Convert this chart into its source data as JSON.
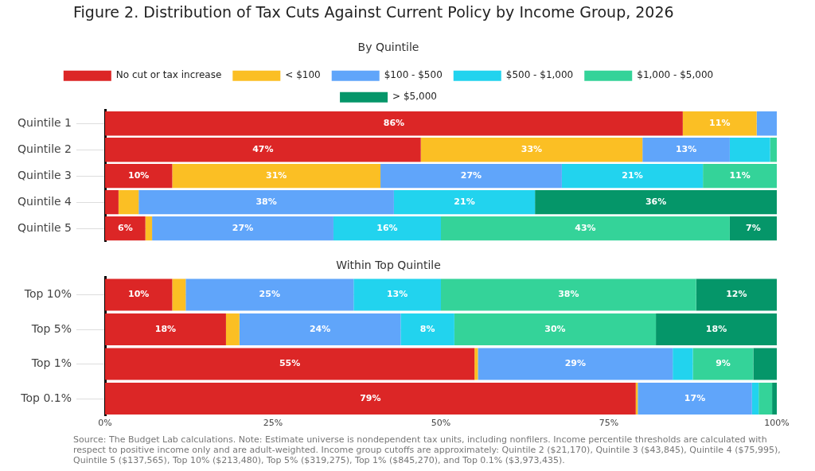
{
  "chart_data": [
    {
      "type": "bar",
      "orientation": "horizontal",
      "stacked": true,
      "title": "Figure 2. Distribution of Tax Cuts Against Current Policy by Income Group, 2026",
      "subtitle": "By Quintile",
      "legend": "top",
      "grid": "y",
      "tick_labels": "y",
      "xlim": [
        0,
        100
      ],
      "categories": [
        "Quintile 1",
        "Quintile 2",
        "Quintile 3",
        "Quintile 4",
        "Quintile 5"
      ],
      "series": [
        {
          "name": "No cut or tax increase",
          "color": "#dc2626",
          "values": [
            86,
            47,
            10,
            2,
            6
          ],
          "value_labels": [
            "86%",
            "47%",
            "10%",
            null,
            "6%"
          ]
        },
        {
          "name": "< $100",
          "color": "#fbbf24",
          "values": [
            11,
            33,
            31,
            3,
            1
          ],
          "value_labels": [
            "11%",
            "33%",
            "31%",
            null,
            null
          ]
        },
        {
          "name": "$100 - $500",
          "color": "#60a5fa",
          "values": [
            3,
            13,
            27,
            38,
            27
          ],
          "value_labels": [
            null,
            "13%",
            "27%",
            "38%",
            "27%"
          ]
        },
        {
          "name": "$500 - $1,000",
          "color": "#22d3ee",
          "values": [
            0,
            6,
            21,
            21,
            16
          ],
          "value_labels": [
            null,
            null,
            "21%",
            "21%",
            "16%"
          ]
        },
        {
          "name": "$1,000 - $5,000",
          "color": "#34d399",
          "values": [
            0,
            1,
            11,
            0,
            43
          ],
          "value_labels": [
            null,
            null,
            "11%",
            null,
            "43%"
          ]
        },
        {
          "name": "> $5,000",
          "color": "#059669",
          "values": [
            0,
            0,
            0,
            36,
            7
          ],
          "value_labels": [
            null,
            null,
            null,
            "36%",
            "7%"
          ]
        }
      ]
    },
    {
      "type": "bar",
      "orientation": "horizontal",
      "stacked": true,
      "title": "Within Top Quintile",
      "grid": "y",
      "xlim": [
        0,
        100
      ],
      "xticks": [
        {
          "value": 0,
          "label": "0%"
        },
        {
          "value": 25,
          "label": "25%"
        },
        {
          "value": 50,
          "label": "50%"
        },
        {
          "value": 75,
          "label": "75%"
        },
        {
          "value": 100,
          "label": "100%"
        }
      ],
      "categories": [
        "Top 10%",
        "Top 5%",
        "Top 1%",
        "Top 0.1%"
      ],
      "series": [
        {
          "color": "#dc2626",
          "values": [
            10,
            18,
            55,
            79
          ],
          "value_labels": [
            "10%",
            "18%",
            "55%",
            "79%"
          ]
        },
        {
          "color": "#fbbf24",
          "values": [
            2,
            2,
            0.5,
            0.3
          ],
          "value_labels": [
            null,
            null,
            null,
            null
          ]
        },
        {
          "color": "#60a5fa",
          "values": [
            25,
            24,
            29,
            17
          ],
          "value_labels": [
            "25%",
            "24%",
            "29%",
            "17%"
          ]
        },
        {
          "color": "#22d3ee",
          "values": [
            13,
            8,
            3,
            1
          ],
          "value_labels": [
            "13%",
            "8%",
            null,
            null
          ]
        },
        {
          "color": "#34d399",
          "values": [
            38,
            30,
            9,
            2
          ],
          "value_labels": [
            "38%",
            "30%",
            "9%",
            null
          ]
        },
        {
          "color": "#059669",
          "values": [
            12,
            18,
            3.5,
            1
          ],
          "value_labels": [
            "12%",
            "18%",
            null,
            null
          ]
        }
      ],
      "annotations": [
        "Source: The Budget Lab calculations. Note: Estimate universe is nondependent tax units, including nonfilers. Income percentile thresholds are calculated with respect to positive income only and are adult-weighted. Income group cutoffs are approximately: Quintile 2 ($21,170), Quintile 3 ($43,845), Quintile 4 ($75,995), Quintile 5 ($137,565), Top 10% ($213,480), Top 5% ($319,275), Top 1% ($845,270), and Top 0.1% ($3,973,435)."
      ]
    }
  ]
}
